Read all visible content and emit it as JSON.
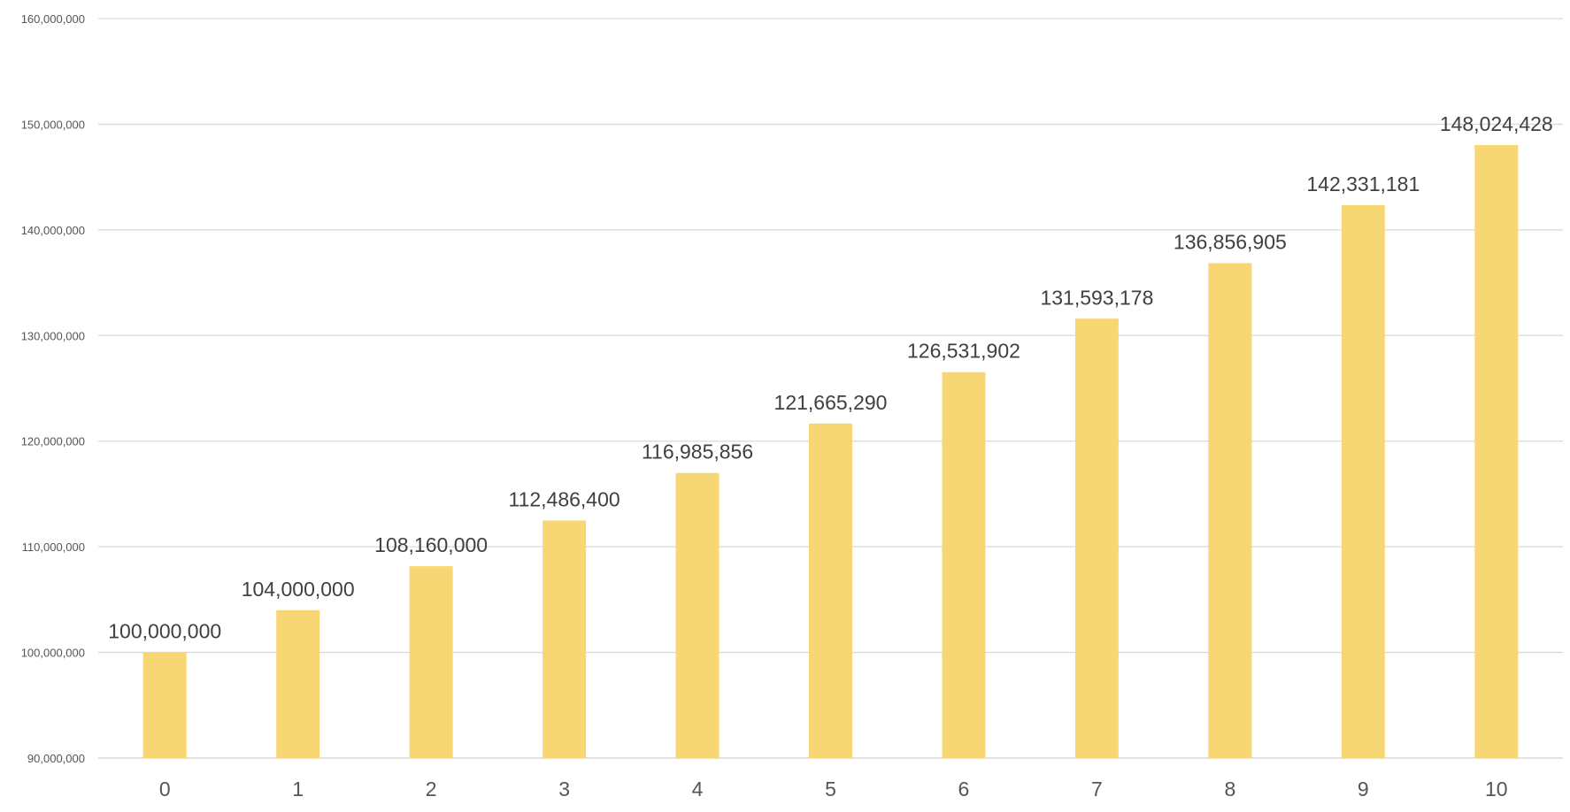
{
  "chart_data": {
    "type": "bar",
    "categories": [
      "0",
      "1",
      "2",
      "3",
      "4",
      "5",
      "6",
      "7",
      "8",
      "9",
      "10"
    ],
    "values": [
      100000000,
      104000000,
      108160000,
      112486400,
      116985856,
      121665290,
      126531902,
      131593178,
      136856905,
      142331181,
      148024428
    ],
    "data_labels": [
      "100,000,000",
      "104,000,000",
      "108,160,000",
      "112,486,400",
      "116,985,856",
      "121,665,290",
      "126,531,902",
      "131,593,178",
      "136,856,905",
      "142,331,181",
      "148,024,428"
    ],
    "title": "",
    "xlabel": "",
    "ylabel": "",
    "ylim": [
      90000000,
      160000000
    ],
    "y_ticks": [
      90000000,
      100000000,
      110000000,
      120000000,
      130000000,
      140000000,
      150000000,
      160000000
    ],
    "y_tick_labels": [
      "90,000,000",
      "100,000,000",
      "110,000,000",
      "120,000,000",
      "130,000,000",
      "140,000,000",
      "150,000,000",
      "160,000,000"
    ],
    "grid": true,
    "legend": "none",
    "bar_color": "#f7d774"
  }
}
